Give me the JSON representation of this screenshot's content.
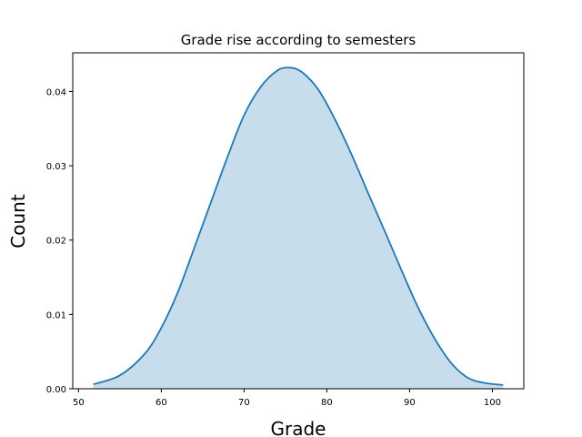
{
  "chart_data": {
    "type": "area",
    "title": "Grade rise according to semesters",
    "xlabel": "Grade",
    "ylabel": "Count",
    "xlim": [
      49.3,
      103.8
    ],
    "ylim": [
      0,
      0.0452
    ],
    "x_ticks": [
      50,
      60,
      70,
      80,
      90,
      100
    ],
    "y_ticks": [
      0.0,
      0.01,
      0.02,
      0.03,
      0.04
    ],
    "y_tick_labels": [
      "0.00",
      "0.01",
      "0.02",
      "0.03",
      "0.04"
    ],
    "grid": false,
    "legend": "none",
    "series": [
      {
        "color": "#1f77b4",
        "fill_color": "#1f77b4",
        "fill_opacity": 0.25,
        "x": [
          51.8,
          55,
          58,
          60,
          62,
          64,
          66,
          68,
          70,
          72,
          74,
          75.5,
          77,
          79,
          81,
          83,
          85,
          87,
          89,
          91,
          93,
          95,
          97,
          99,
          101.3
        ],
        "y": [
          0.0006,
          0.0018,
          0.0047,
          0.0082,
          0.013,
          0.019,
          0.0251,
          0.0312,
          0.0368,
          0.0406,
          0.0428,
          0.0432,
          0.0426,
          0.0402,
          0.0362,
          0.0315,
          0.0263,
          0.0212,
          0.016,
          0.011,
          0.0068,
          0.0035,
          0.0015,
          0.0008,
          0.0005
        ]
      }
    ]
  }
}
